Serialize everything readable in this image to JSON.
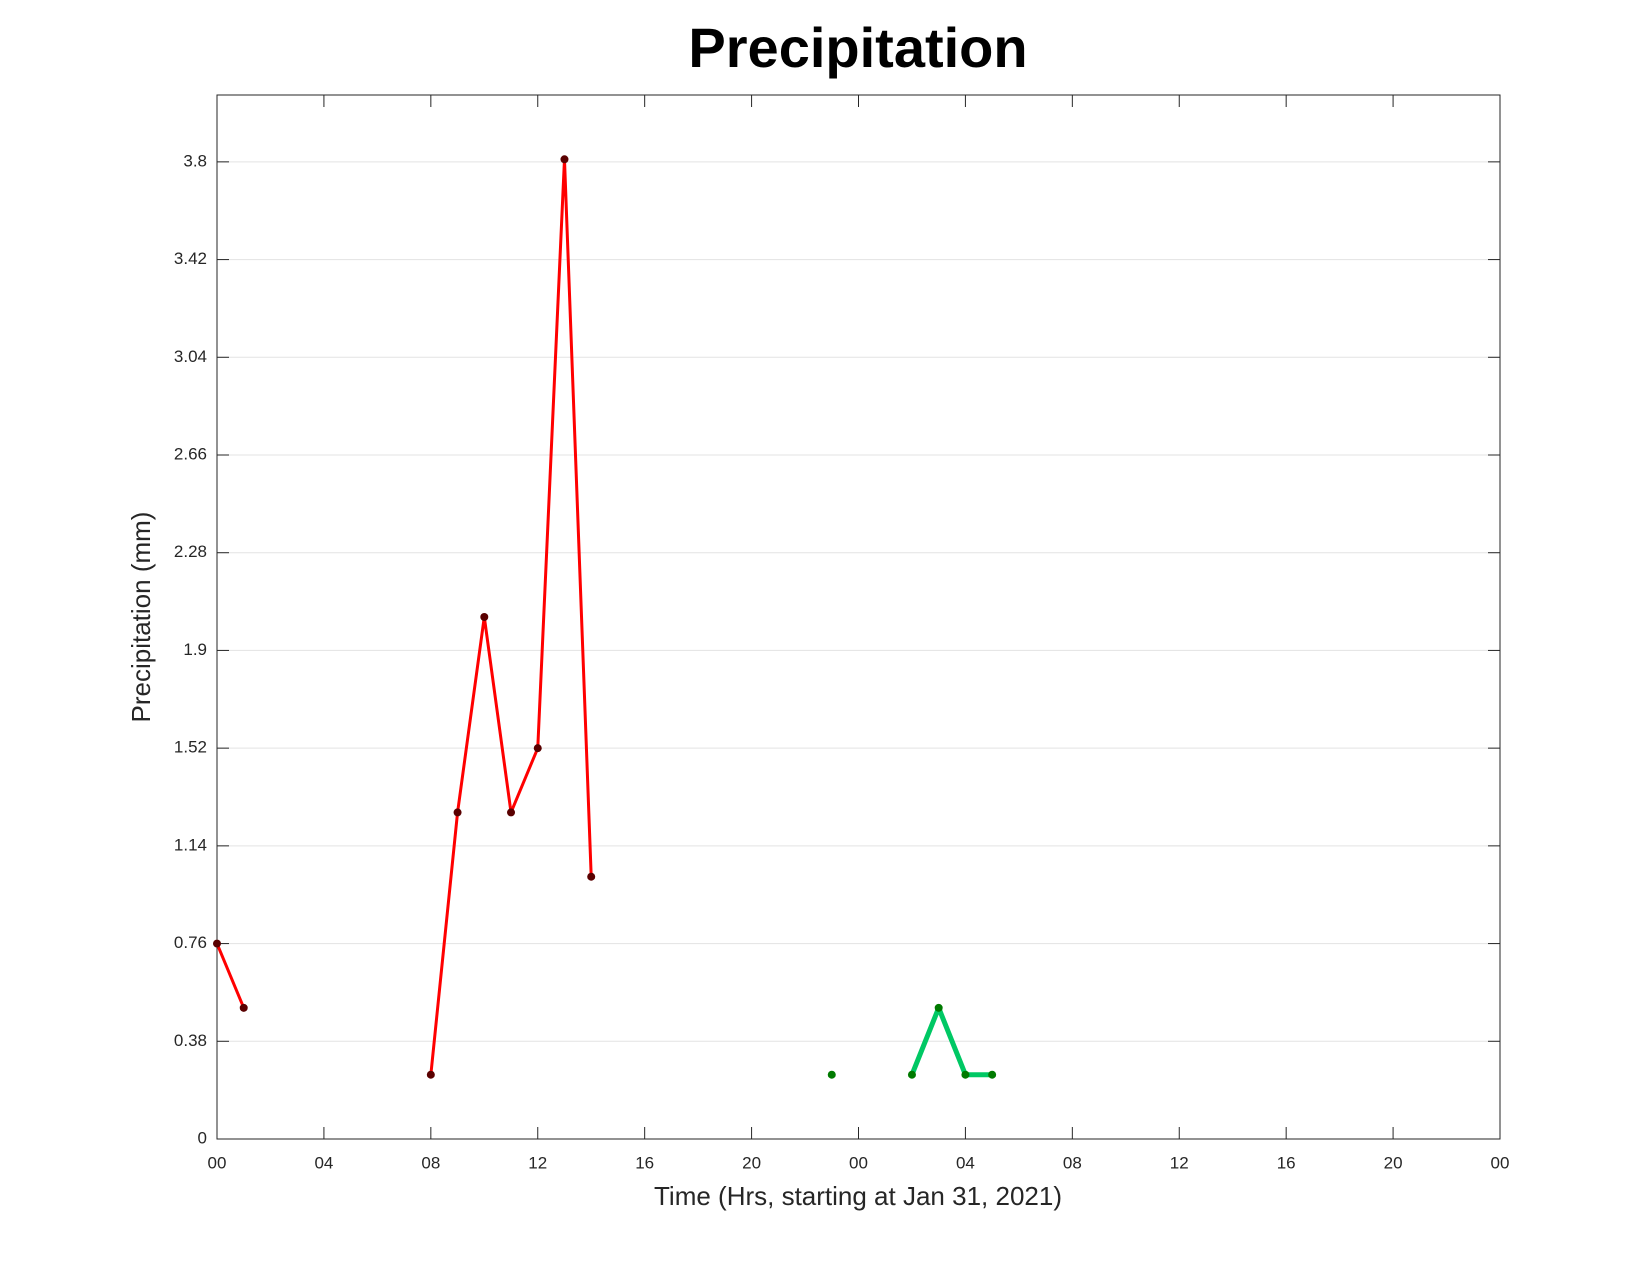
{
  "chart_data": {
    "type": "line",
    "title": "Precipitation",
    "x_label": "Time (Hrs, starting at Jan 31, 2021)",
    "y_label": "Precipitation (mm)",
    "xlim": [
      0,
      48
    ],
    "xticks": [
      {
        "value": 0,
        "label": "00"
      },
      {
        "value": 4,
        "label": "04"
      },
      {
        "value": 8,
        "label": "08"
      },
      12,
      16,
      20,
      {
        "value": 24,
        "label": "00"
      },
      {
        "value": 28,
        "label": "04"
      },
      {
        "value": 32,
        "label": "08"
      },
      {
        "value": 36,
        "label": "12"
      },
      {
        "value": 40,
        "label": "16"
      },
      {
        "value": 44,
        "label": "20"
      },
      {
        "value": 48,
        "label": "00"
      }
    ],
    "ylim": [
      0,
      4.06
    ],
    "yticks": [
      0,
      0.38,
      0.76,
      1.14,
      1.52,
      1.9,
      2.28,
      2.66,
      3.04,
      3.42,
      3.8
    ],
    "grid": true,
    "series": [
      {
        "color": "#ff0000",
        "marker_color": "#5a0000",
        "line_width": 3,
        "x": [
          0,
          1,
          2,
          3,
          4,
          5,
          6,
          7,
          8,
          9,
          10,
          11,
          12,
          13,
          14
        ],
        "values": [
          0.76,
          0.51,
          null,
          null,
          null,
          null,
          null,
          null,
          0.25,
          1.27,
          2.03,
          1.27,
          1.52,
          3.81,
          1.02
        ]
      },
      {
        "color": "#00c864",
        "marker_color": "#007a00",
        "line_width": 5,
        "x": [
          23,
          24,
          25,
          26,
          27,
          28,
          29
        ],
        "values": [
          0.25,
          null,
          null,
          0.25,
          0.51,
          0.25,
          0.25
        ]
      }
    ]
  }
}
